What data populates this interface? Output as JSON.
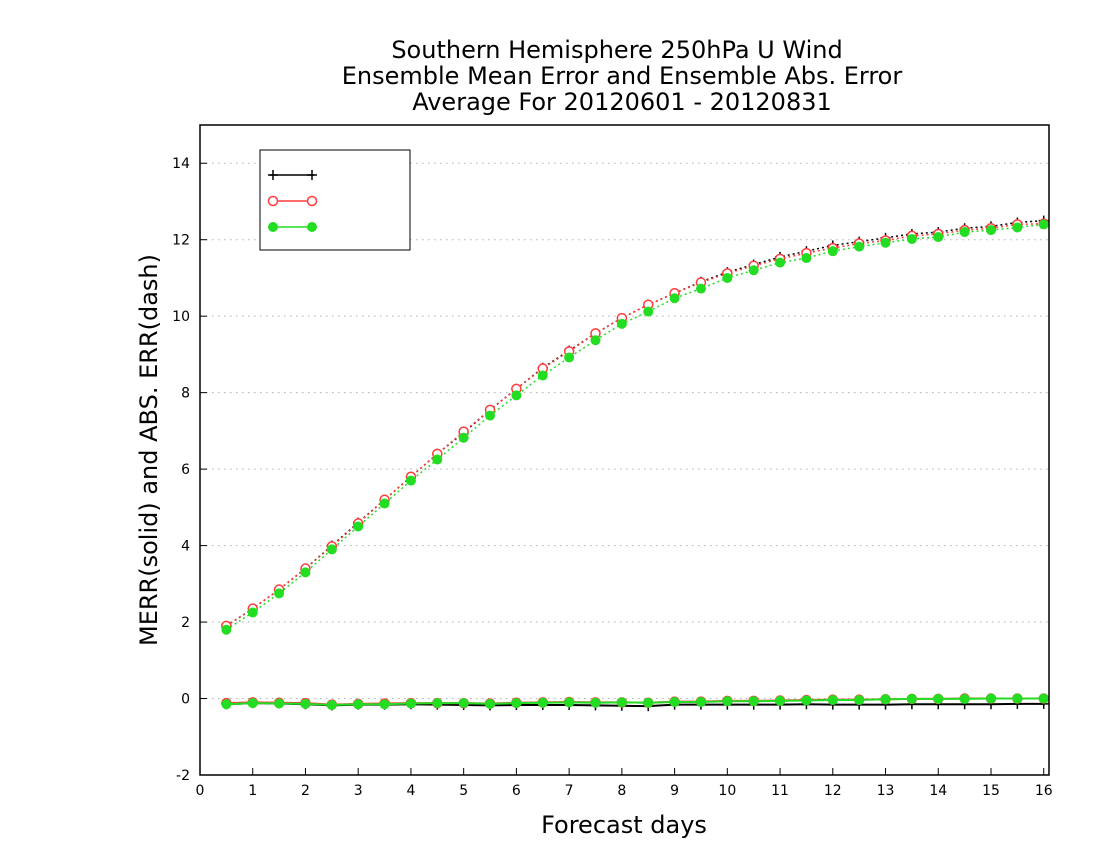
{
  "chart_data": {
    "type": "line",
    "title": [
      "Southern Hemisphere 250hPa U Wind",
      "Ensemble Mean Error and Ensemble Abs. Error",
      "Average For 20120601 - 20120831"
    ],
    "xlabel": "Forecast days",
    "ylabel": "MERR(solid) and ABS. ERR(dash)",
    "xlim": [
      0,
      16.1
    ],
    "ylim": [
      -2,
      15
    ],
    "xticks": [
      0,
      1,
      2,
      3,
      4,
      5,
      6,
      7,
      8,
      9,
      10,
      11,
      12,
      13,
      14,
      15,
      16
    ],
    "yticks": [
      -2,
      0,
      2,
      4,
      6,
      8,
      10,
      12,
      14
    ],
    "grid": "horizontal dotted",
    "legend_position": "top-left",
    "x": [
      0.5,
      1,
      1.5,
      2,
      2.5,
      3,
      3.5,
      4,
      4.5,
      5,
      5.5,
      6,
      6.5,
      7,
      7.5,
      8,
      8.5,
      9,
      9.5,
      10,
      10.5,
      11,
      11.5,
      12,
      12.5,
      13,
      13.5,
      14,
      14.5,
      15,
      15.5,
      16
    ],
    "series": [
      {
        "name": "",
        "color": "#000000",
        "marker": "plus",
        "merr": [
          -0.15,
          -0.12,
          -0.13,
          -0.15,
          -0.18,
          -0.16,
          -0.16,
          -0.15,
          -0.16,
          -0.17,
          -0.18,
          -0.17,
          -0.17,
          -0.17,
          -0.18,
          -0.19,
          -0.2,
          -0.16,
          -0.16,
          -0.16,
          -0.16,
          -0.16,
          -0.15,
          -0.16,
          -0.16,
          -0.16,
          -0.15,
          -0.15,
          -0.15,
          -0.15,
          -0.14,
          -0.14
        ],
        "abs_err": [
          1.9,
          2.35,
          2.85,
          3.4,
          4.0,
          4.6,
          5.2,
          5.8,
          6.4,
          6.95,
          7.55,
          8.1,
          8.65,
          9.1,
          9.55,
          9.95,
          10.3,
          10.6,
          10.9,
          11.15,
          11.35,
          11.55,
          11.7,
          11.85,
          11.95,
          12.05,
          12.15,
          12.2,
          12.3,
          12.35,
          12.45,
          12.5
        ]
      },
      {
        "name": "",
        "color": "#ff3b3b",
        "marker": "open-circle",
        "merr": [
          -0.12,
          -0.1,
          -0.11,
          -0.12,
          -0.16,
          -0.14,
          -0.13,
          -0.12,
          -0.12,
          -0.12,
          -0.13,
          -0.11,
          -0.1,
          -0.09,
          -0.1,
          -0.1,
          -0.11,
          -0.08,
          -0.08,
          -0.06,
          -0.06,
          -0.05,
          -0.04,
          -0.03,
          -0.03,
          -0.02,
          -0.01,
          -0.01,
          0.0,
          0.0,
          0.0,
          0.0
        ],
        "abs_err": [
          1.9,
          2.35,
          2.85,
          3.4,
          3.98,
          4.58,
          5.2,
          5.8,
          6.4,
          6.98,
          7.55,
          8.1,
          8.63,
          9.08,
          9.55,
          9.95,
          10.3,
          10.6,
          10.88,
          11.12,
          11.32,
          11.5,
          11.65,
          11.78,
          11.9,
          11.98,
          12.1,
          12.15,
          12.25,
          12.3,
          12.4,
          12.42
        ]
      },
      {
        "name": "",
        "color": "#22dd22",
        "marker": "filled-circle",
        "merr": [
          -0.15,
          -0.12,
          -0.13,
          -0.14,
          -0.17,
          -0.15,
          -0.15,
          -0.13,
          -0.12,
          -0.12,
          -0.14,
          -0.12,
          -0.11,
          -0.1,
          -0.11,
          -0.1,
          -0.11,
          -0.09,
          -0.09,
          -0.07,
          -0.07,
          -0.06,
          -0.05,
          -0.04,
          -0.04,
          -0.02,
          -0.01,
          -0.01,
          -0.01,
          0.0,
          0.0,
          0.0
        ],
        "abs_err": [
          1.8,
          2.25,
          2.75,
          3.3,
          3.9,
          4.5,
          5.1,
          5.7,
          6.25,
          6.82,
          7.4,
          7.93,
          8.45,
          8.92,
          9.37,
          9.8,
          10.12,
          10.47,
          10.72,
          11.0,
          11.2,
          11.4,
          11.52,
          11.7,
          11.82,
          11.92,
          12.02,
          12.07,
          12.2,
          12.25,
          12.32,
          12.4
        ]
      }
    ]
  }
}
